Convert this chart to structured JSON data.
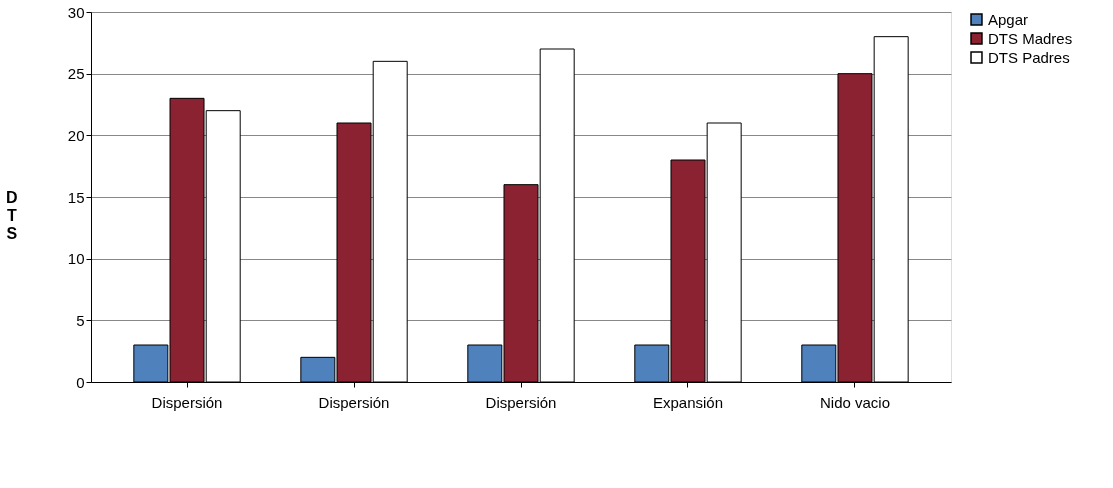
{
  "chart_data": {
    "type": "bar",
    "ylabel": "DTS",
    "categories": [
      "Dispersión",
      "Dispersión",
      "Dispersión",
      "Expansión",
      "Nido vacio"
    ],
    "series": [
      {
        "name": "Apgar",
        "color": "#4f81bd",
        "values": [
          3,
          2,
          3,
          3,
          3
        ]
      },
      {
        "name": "DTS Madres",
        "color": "#8b2232",
        "values": [
          23,
          21,
          16,
          18,
          25
        ]
      },
      {
        "name": "DTS Padres",
        "color": "#ffffff",
        "values": [
          22,
          26,
          27,
          21,
          28
        ]
      }
    ],
    "ylim": [
      0,
      30
    ],
    "yticks": [
      0,
      5,
      10,
      15,
      20,
      25,
      30
    ],
    "grid": "y",
    "legend": "right"
  }
}
